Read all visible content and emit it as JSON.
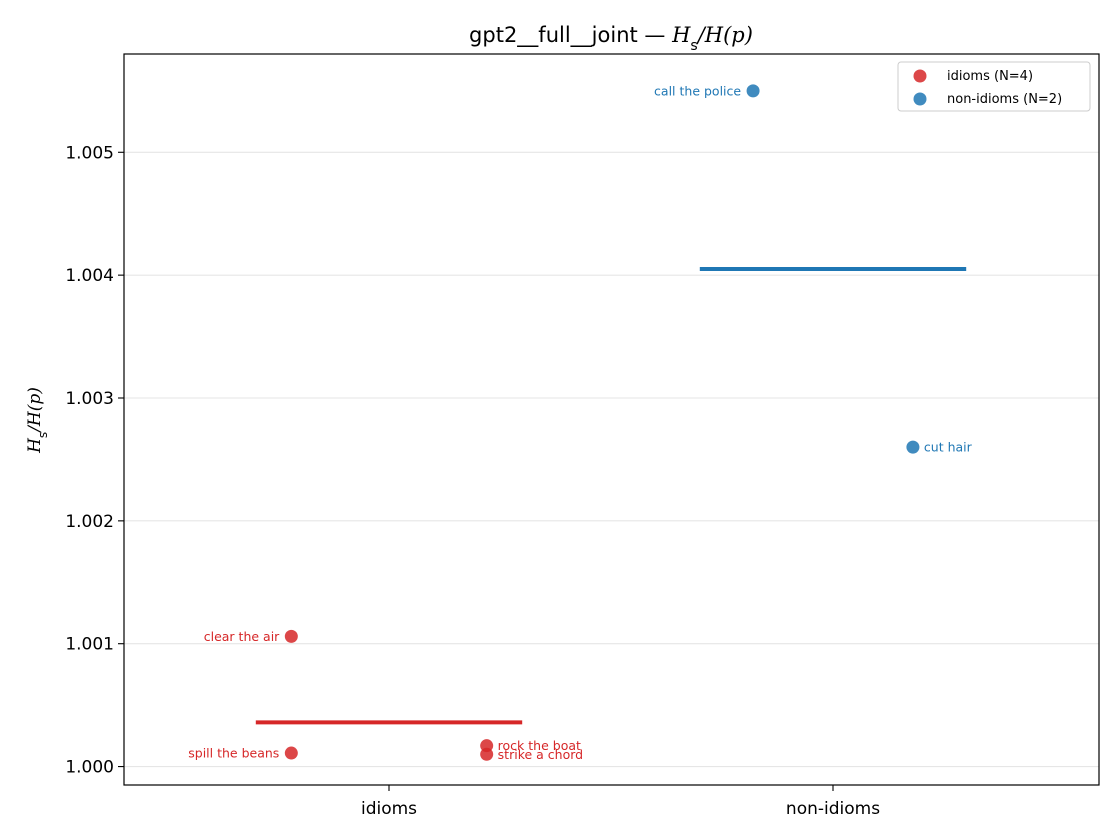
{
  "chart_data": {
    "type": "scatter",
    "title": {
      "prefix": "gpt2__full__joint — ",
      "H": "H",
      "sub": "s",
      "rest": "/H(p)"
    },
    "ylabel": {
      "H": "H",
      "sub": "s",
      "rest": "/H(p)"
    },
    "ylim": [
      0.99985,
      1.0058
    ],
    "yticks": [
      1.0,
      1.001,
      1.002,
      1.003,
      1.004,
      1.005
    ],
    "ytick_labels": [
      "1.000",
      "1.001",
      "1.002",
      "1.003",
      "1.004",
      "1.005"
    ],
    "categories": [
      "idioms",
      "non-idioms"
    ],
    "grid": "y",
    "legend_position": "top-right",
    "series": [
      {
        "name": "idioms (N=4)",
        "category": "idioms",
        "color": "#d62728",
        "mean": 1.00036,
        "points": [
          {
            "label": "clear the air",
            "y": 1.00106,
            "offset": -0.22,
            "side": "left"
          },
          {
            "label": "spill the beans",
            "y": 1.00011,
            "offset": -0.22,
            "side": "left"
          },
          {
            "label": "rock the boat",
            "y": 1.00017,
            "offset": 0.22,
            "side": "right"
          },
          {
            "label": "strike a chord",
            "y": 1.0001,
            "offset": 0.22,
            "side": "right"
          }
        ]
      },
      {
        "name": "non-idioms (N=2)",
        "category": "non-idioms",
        "color": "#1f77b4",
        "mean": 1.00405,
        "points": [
          {
            "label": "call the police",
            "y": 1.0055,
            "offset": -0.18,
            "side": "left"
          },
          {
            "label": "cut hair",
            "y": 1.0026,
            "offset": 0.18,
            "side": "right"
          }
        ]
      }
    ]
  }
}
